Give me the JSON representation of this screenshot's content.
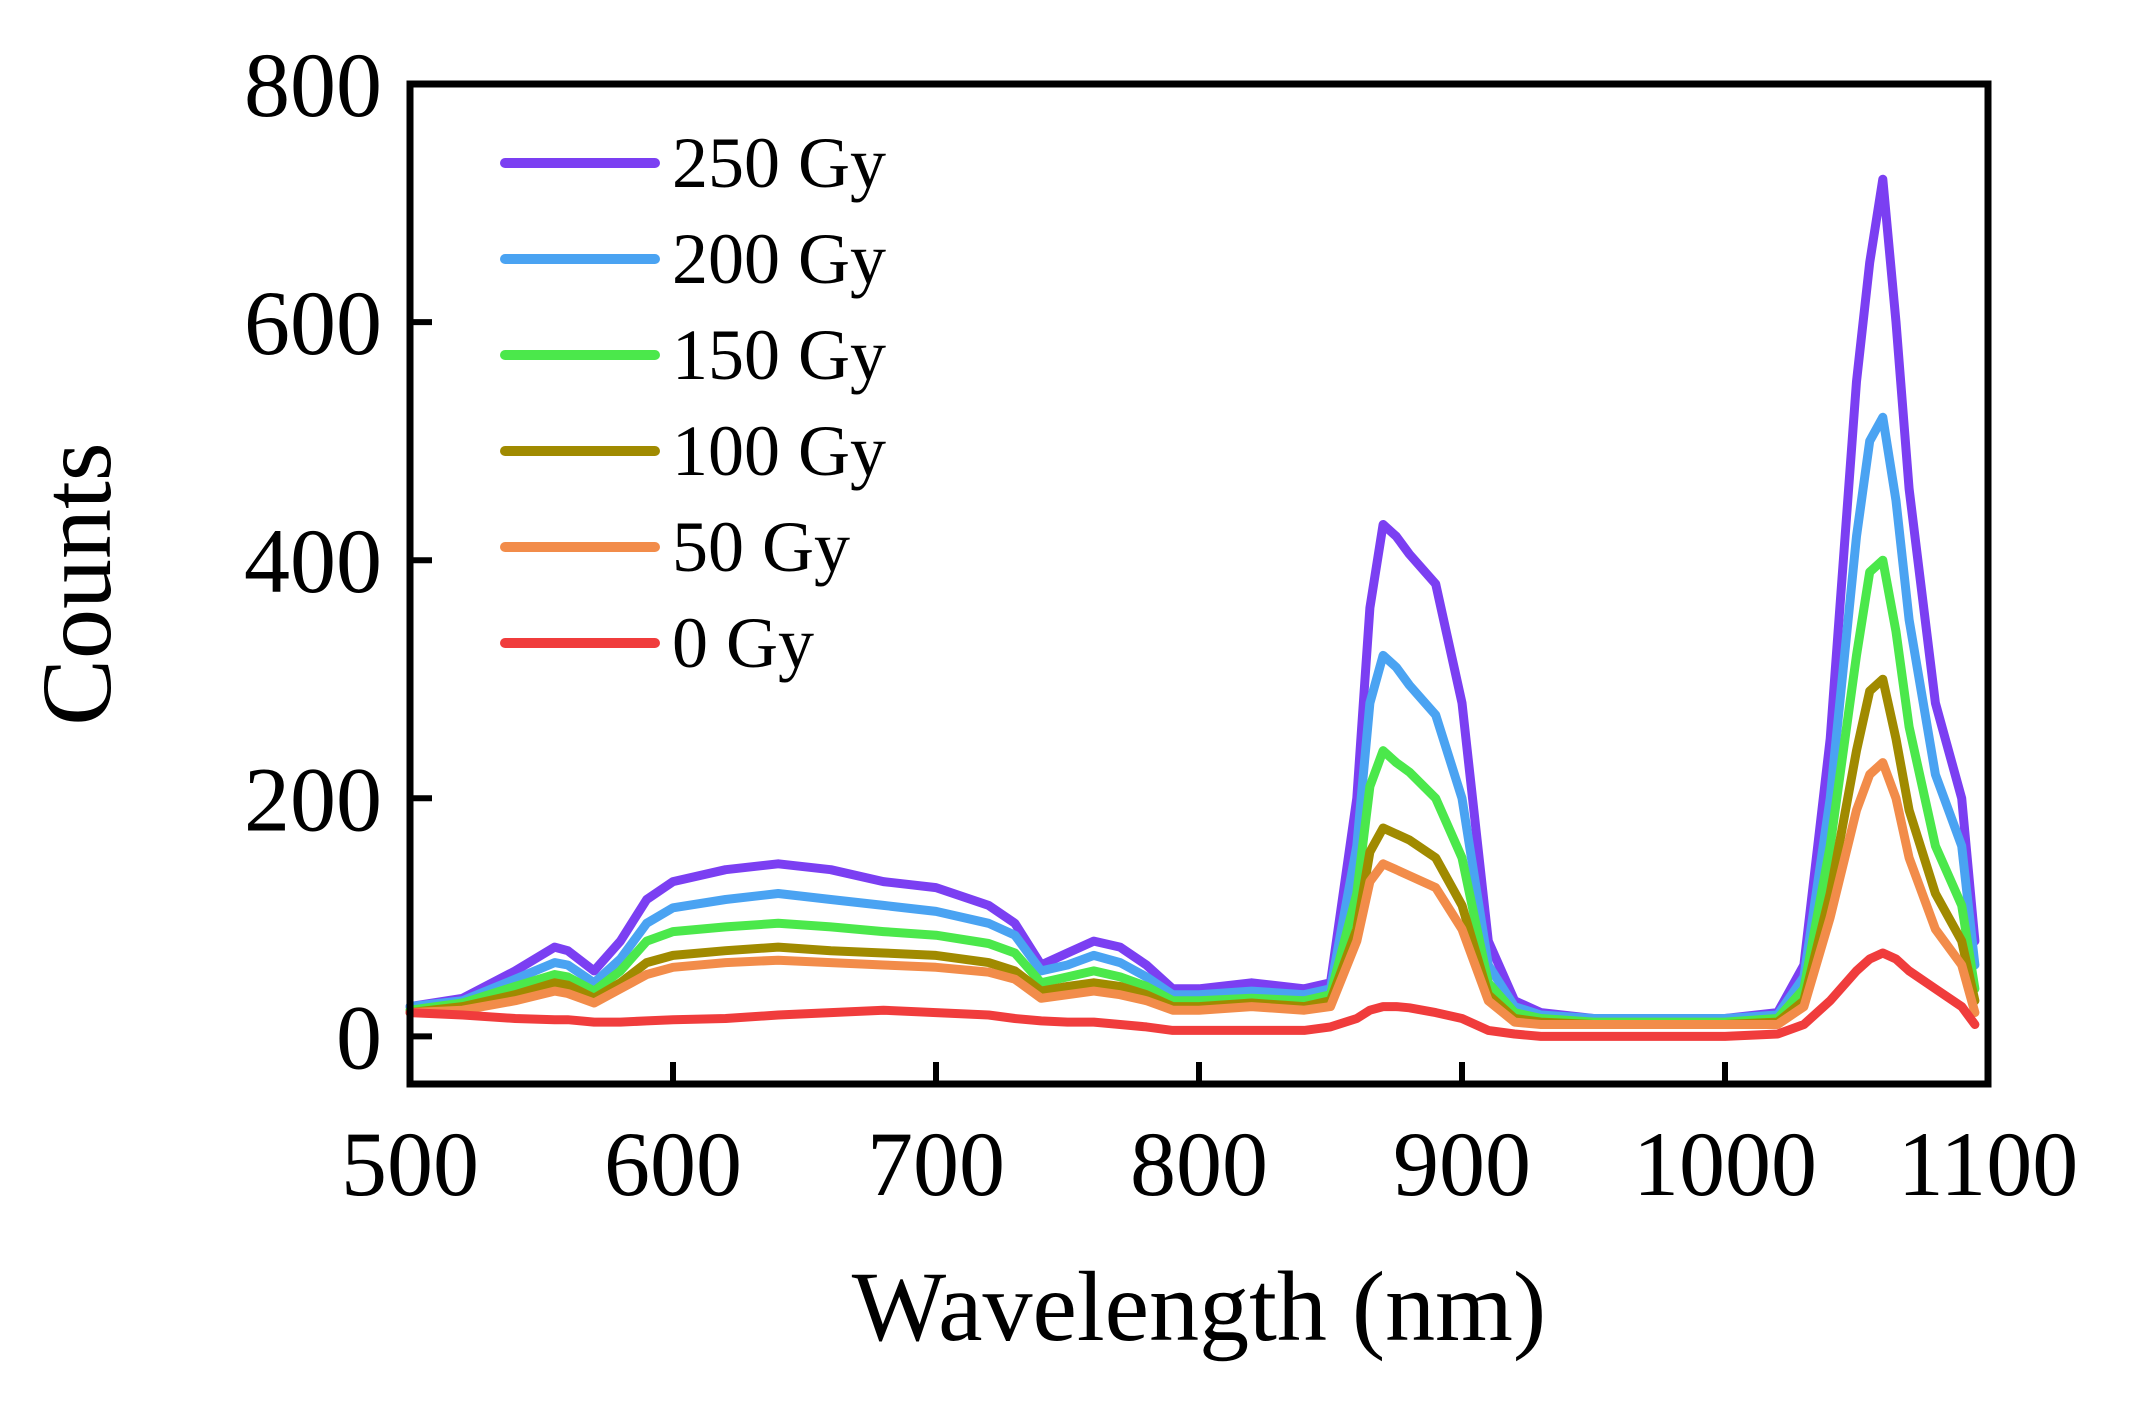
{
  "chart_data": {
    "type": "line",
    "xlabel": "Wavelength (nm)",
    "ylabel": "Counts",
    "xlim": [
      500,
      1100
    ],
    "ylim": [
      -40,
      800
    ],
    "xticks": [
      500,
      600,
      700,
      800,
      900,
      1000,
      1100
    ],
    "yticks": [
      0,
      200,
      400,
      600,
      800
    ],
    "grid": false,
    "legend_position": "top-left",
    "x": [
      500,
      520,
      540,
      555,
      560,
      570,
      580,
      590,
      600,
      620,
      640,
      660,
      680,
      700,
      720,
      730,
      740,
      750,
      760,
      770,
      780,
      790,
      800,
      820,
      840,
      850,
      860,
      865,
      870,
      875,
      880,
      890,
      900,
      910,
      920,
      930,
      950,
      980,
      1000,
      1020,
      1030,
      1040,
      1050,
      1055,
      1060,
      1065,
      1070,
      1080,
      1090,
      1095
    ],
    "series": [
      {
        "name": "250 Gy",
        "color": "#7b3ff2",
        "values": [
          25,
          32,
          55,
          75,
          72,
          55,
          80,
          115,
          130,
          140,
          145,
          140,
          130,
          125,
          110,
          95,
          60,
          70,
          80,
          75,
          60,
          40,
          40,
          45,
          40,
          45,
          200,
          360,
          430,
          420,
          405,
          380,
          280,
          80,
          30,
          20,
          15,
          15,
          15,
          20,
          60,
          250,
          550,
          650,
          720,
          600,
          460,
          280,
          200,
          80
        ]
      },
      {
        "name": "200 Gy",
        "color": "#4aa3f2",
        "values": [
          25,
          30,
          48,
          62,
          60,
          45,
          65,
          95,
          108,
          115,
          120,
          115,
          110,
          105,
          95,
          85,
          55,
          60,
          68,
          62,
          50,
          35,
          35,
          38,
          35,
          40,
          160,
          280,
          320,
          310,
          295,
          270,
          200,
          60,
          25,
          18,
          15,
          15,
          15,
          18,
          50,
          200,
          420,
          500,
          520,
          450,
          350,
          220,
          160,
          60
        ]
      },
      {
        "name": "150 Gy",
        "color": "#4be84b",
        "values": [
          22,
          28,
          42,
          52,
          50,
          38,
          55,
          80,
          88,
          92,
          95,
          92,
          88,
          85,
          78,
          70,
          45,
          50,
          55,
          50,
          42,
          30,
          30,
          32,
          30,
          35,
          120,
          210,
          240,
          230,
          222,
          200,
          150,
          45,
          20,
          15,
          12,
          12,
          12,
          15,
          40,
          160,
          320,
          390,
          400,
          340,
          260,
          160,
          110,
          40
        ]
      },
      {
        "name": "100 Gy",
        "color": "#a08a00",
        "values": [
          20,
          25,
          35,
          45,
          43,
          32,
          45,
          62,
          68,
          72,
          75,
          72,
          70,
          68,
          62,
          55,
          38,
          42,
          45,
          42,
          35,
          25,
          25,
          28,
          25,
          30,
          90,
          155,
          175,
          170,
          165,
          150,
          110,
          35,
          15,
          12,
          10,
          10,
          10,
          12,
          30,
          120,
          240,
          290,
          300,
          250,
          190,
          120,
          80,
          30
        ]
      },
      {
        "name": "50 Gy",
        "color": "#f28c4a",
        "values": [
          20,
          22,
          30,
          38,
          36,
          28,
          40,
          52,
          58,
          62,
          64,
          62,
          60,
          58,
          54,
          48,
          32,
          35,
          38,
          35,
          30,
          22,
          22,
          25,
          22,
          25,
          80,
          130,
          145,
          140,
          135,
          125,
          90,
          30,
          12,
          10,
          10,
          10,
          10,
          10,
          25,
          100,
          190,
          220,
          230,
          200,
          150,
          90,
          60,
          20
        ]
      },
      {
        "name": "0 Gy",
        "color": "#f03c3c",
        "values": [
          20,
          18,
          15,
          14,
          14,
          12,
          12,
          13,
          14,
          15,
          18,
          20,
          22,
          20,
          18,
          15,
          13,
          12,
          12,
          10,
          8,
          5,
          5,
          5,
          5,
          8,
          15,
          22,
          25,
          25,
          24,
          20,
          15,
          5,
          2,
          0,
          0,
          0,
          0,
          2,
          10,
          30,
          55,
          65,
          70,
          65,
          55,
          40,
          25,
          10
        ]
      }
    ]
  }
}
